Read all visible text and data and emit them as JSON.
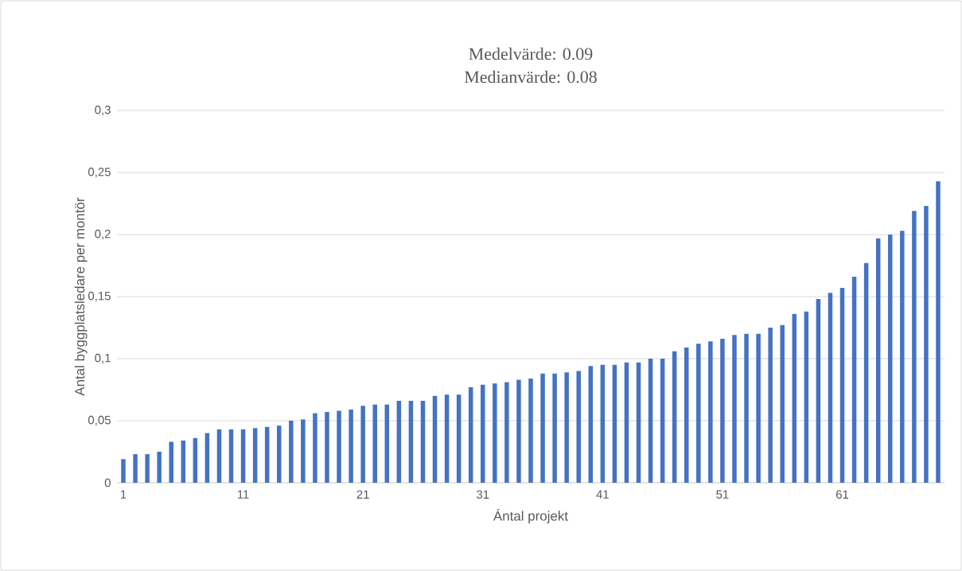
{
  "chart_data": {
    "type": "bar",
    "title": "Medelvärde: 0.09",
    "subtitle": "Medianvärde: 0.08",
    "xlabel": "Ántal projekt",
    "ylabel": "Antal byggplatsledare per montör",
    "categories": [
      "1",
      null,
      null,
      null,
      null,
      null,
      null,
      null,
      null,
      null,
      "11",
      null,
      null,
      null,
      null,
      null,
      null,
      null,
      null,
      null,
      "21",
      null,
      null,
      null,
      null,
      null,
      null,
      null,
      null,
      null,
      "31",
      null,
      null,
      null,
      null,
      null,
      null,
      null,
      null,
      null,
      "41",
      null,
      null,
      null,
      null,
      null,
      null,
      null,
      null,
      null,
      "51",
      null,
      null,
      null,
      null,
      null,
      null,
      null,
      null,
      null,
      "61",
      null,
      null,
      null,
      null,
      null,
      null,
      null,
      null
    ],
    "values": [
      0.019,
      0.023,
      0.023,
      0.025,
      0.033,
      0.034,
      0.036,
      0.04,
      0.043,
      0.043,
      0.043,
      0.044,
      0.045,
      0.046,
      0.05,
      0.051,
      0.056,
      0.057,
      0.058,
      0.059,
      0.062,
      0.063,
      0.063,
      0.066,
      0.066,
      0.066,
      0.07,
      0.071,
      0.071,
      0.077,
      0.079,
      0.08,
      0.081,
      0.083,
      0.084,
      0.088,
      0.088,
      0.089,
      0.09,
      0.094,
      0.095,
      0.095,
      0.097,
      0.097,
      0.1,
      0.1,
      0.106,
      0.109,
      0.112,
      0.114,
      0.116,
      0.119,
      0.12,
      0.12,
      0.125,
      0.127,
      0.136,
      0.138,
      0.148,
      0.153,
      0.157,
      0.166,
      0.177,
      0.197,
      0.2,
      0.203,
      0.219,
      0.223,
      0.243
    ],
    "color": "#4472c4",
    "ylim": [
      0,
      0.3
    ],
    "yticks": [
      {
        "value": 0,
        "label": "0"
      },
      {
        "value": 0.05,
        "label": "0,05"
      },
      {
        "value": 0.1,
        "label": "0,1"
      },
      {
        "value": 0.15,
        "label": "0,15"
      },
      {
        "value": 0.2,
        "label": "0,2"
      },
      {
        "value": 0.25,
        "label": "0,25"
      },
      {
        "value": 0.3,
        "label": "0,3"
      }
    ],
    "grid": "y"
  }
}
